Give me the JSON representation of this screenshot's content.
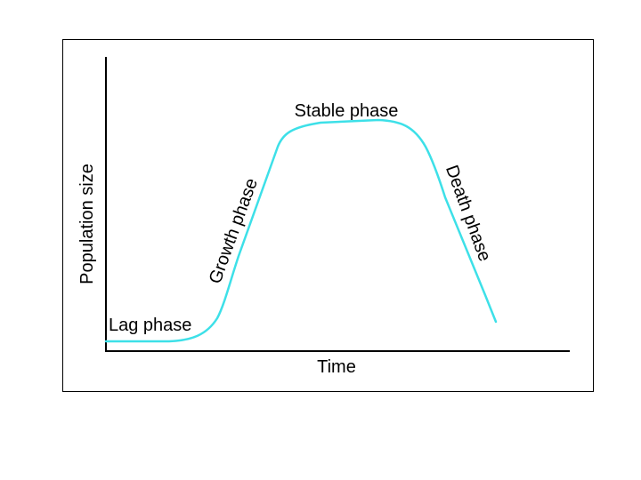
{
  "diagram": {
    "x_axis_label": "Time",
    "y_axis_label": "Population size",
    "curve_color": "#3de0e8",
    "axis_color": "#000000",
    "phases": [
      {
        "id": "lag",
        "label": "Lag phase"
      },
      {
        "id": "growth",
        "label": "Growth phase"
      },
      {
        "id": "stable",
        "label": "Stable phase"
      },
      {
        "id": "death",
        "label": "Death phase"
      }
    ]
  }
}
